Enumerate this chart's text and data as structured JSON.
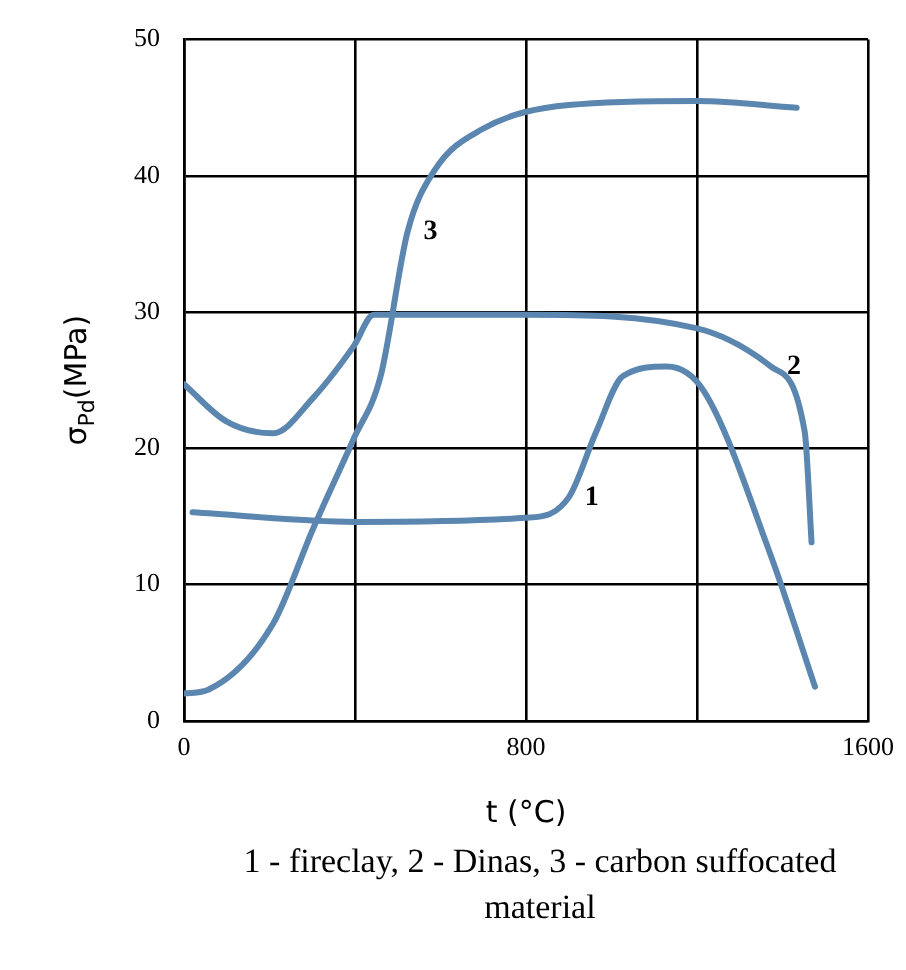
{
  "chart_data": {
    "type": "line",
    "xlabel": "t (°C)",
    "ylabel": "σ$_{Pd}$(MPa)",
    "xlim": [
      0,
      1600
    ],
    "xticks": [
      0,
      {
        "value": 400,
        "label": null
      },
      800,
      {
        "value": 1200,
        "label": null
      },
      1600
    ],
    "ylim": [
      0,
      50
    ],
    "yticks": [
      0,
      10,
      20,
      30,
      40,
      50
    ],
    "grid": true,
    "legend": false,
    "marker": "none",
    "line_style": "solid",
    "series": [
      {
        "color": "#5b86b0",
        "x": [
          20,
          400,
          800,
          900,
          964,
          1027,
          1129,
          1216,
          1373,
          1476
        ],
        "values": [
          15.3,
          14.6,
          14.9,
          16.4,
          21.2,
          25.3,
          26,
          24.2,
          12.1,
          2.5
        ]
      },
      {
        "color": "#5b86b0",
        "x": [
          0,
          98,
          208,
          302,
          397,
          444,
          800,
          1200,
          1373,
          1452,
          1468
        ],
        "values": [
          24.7,
          22,
          21.1,
          23.7,
          27.5,
          29.8,
          29.8,
          28.8,
          26,
          21.2,
          13.1
        ]
      },
      {
        "color": "#5b86b0",
        "x": [
          0,
          58,
          208,
          302,
          397,
          460,
          523,
          586,
          696,
          900,
          1200,
          1433
        ],
        "values": [
          2,
          2.3,
          7.1,
          14.1,
          20.7,
          25.3,
          35.9,
          40.4,
          43.4,
          45.2,
          45.5,
          45
        ]
      }
    ],
    "annotations": [
      {
        "text": "1",
        "x": 900,
        "y": 16.4
      },
      {
        "text": "2",
        "x": 1373,
        "y": 26
      },
      {
        "text": "3",
        "x": 523,
        "y": 35.9
      },
      "1 - fireclay, 2 - Dinas, 3 - carbon suffocated material"
    ]
  }
}
